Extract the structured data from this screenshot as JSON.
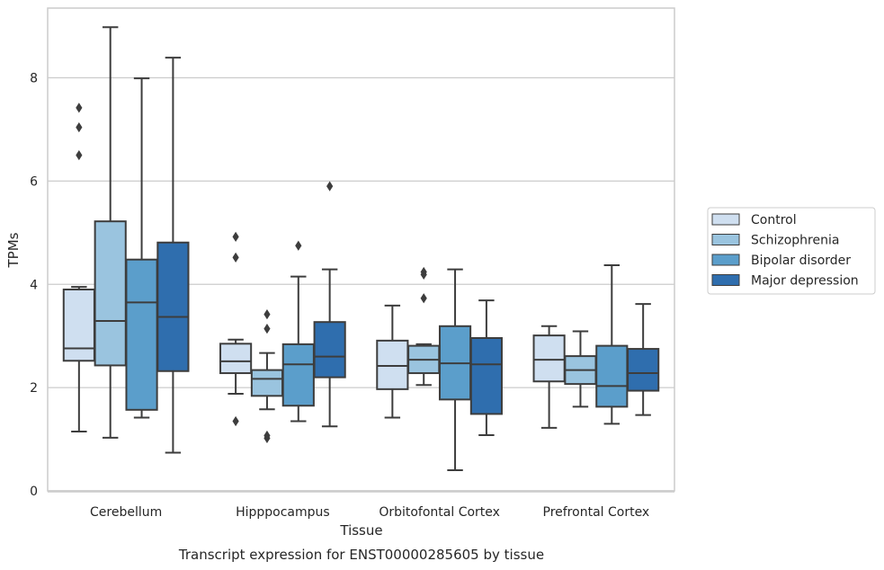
{
  "chart_data": {
    "type": "boxplot",
    "caption": "Transcript expression for ENST00000285605 by tissue",
    "xlabel": "Tissue",
    "ylabel": "TPMs",
    "ylim": [
      0,
      9.35
    ],
    "yticks": [
      0,
      2,
      4,
      6,
      8
    ],
    "grid": "horizontal",
    "legend_position": "right",
    "categories": [
      "Cerebellum",
      "Hipppocampus",
      "Orbitofontal Cortex",
      "Prefrontal Cortex"
    ],
    "series": [
      {
        "name": "Control",
        "color": "#cfdff0",
        "boxes": [
          {
            "whisker_low": 1.15,
            "q1": 2.52,
            "median": 2.76,
            "q3": 3.9,
            "whisker_high": 3.95,
            "outliers": [
              6.5,
              7.04,
              7.42
            ]
          },
          {
            "whisker_low": 1.88,
            "q1": 2.28,
            "median": 2.51,
            "q3": 2.85,
            "whisker_high": 2.93,
            "outliers": [
              1.35,
              4.52,
              4.92
            ]
          },
          {
            "whisker_low": 1.42,
            "q1": 1.97,
            "median": 2.42,
            "q3": 2.91,
            "whisker_high": 3.59,
            "outliers": []
          },
          {
            "whisker_low": 1.22,
            "q1": 2.12,
            "median": 2.54,
            "q3": 3.01,
            "whisker_high": 3.19,
            "outliers": []
          }
        ]
      },
      {
        "name": "Schizophrenia",
        "color": "#9ac4df",
        "boxes": [
          {
            "whisker_low": 1.03,
            "q1": 2.43,
            "median": 3.29,
            "q3": 5.22,
            "whisker_high": 8.98,
            "outliers": []
          },
          {
            "whisker_low": 1.58,
            "q1": 1.84,
            "median": 2.17,
            "q3": 2.34,
            "whisker_high": 2.67,
            "outliers": [
              1.02,
              1.07,
              3.14,
              3.42
            ]
          },
          {
            "whisker_low": 2.05,
            "q1": 2.28,
            "median": 2.54,
            "q3": 2.81,
            "whisker_high": 2.84,
            "outliers": [
              3.73,
              4.19,
              4.24
            ]
          },
          {
            "whisker_low": 1.63,
            "q1": 2.07,
            "median": 2.34,
            "q3": 2.61,
            "whisker_high": 3.09,
            "outliers": []
          }
        ]
      },
      {
        "name": "Bipolar disorder",
        "color": "#5b9ecb",
        "boxes": [
          {
            "whisker_low": 1.42,
            "q1": 1.57,
            "median": 3.65,
            "q3": 4.48,
            "whisker_high": 7.99,
            "outliers": []
          },
          {
            "whisker_low": 1.35,
            "q1": 1.65,
            "median": 2.45,
            "q3": 2.84,
            "whisker_high": 4.15,
            "outliers": [
              4.75
            ]
          },
          {
            "whisker_low": 0.4,
            "q1": 1.77,
            "median": 2.47,
            "q3": 3.19,
            "whisker_high": 4.29,
            "outliers": []
          },
          {
            "whisker_low": 1.3,
            "q1": 1.63,
            "median": 2.03,
            "q3": 2.81,
            "whisker_high": 4.37,
            "outliers": []
          }
        ]
      },
      {
        "name": "Major depression",
        "color": "#2f6eae",
        "boxes": [
          {
            "whisker_low": 0.74,
            "q1": 2.32,
            "median": 3.37,
            "q3": 4.81,
            "whisker_high": 8.39,
            "outliers": []
          },
          {
            "whisker_low": 1.25,
            "q1": 2.2,
            "median": 2.6,
            "q3": 3.27,
            "whisker_high": 4.29,
            "outliers": [
              5.9
            ]
          },
          {
            "whisker_low": 1.08,
            "q1": 1.49,
            "median": 2.45,
            "q3": 2.96,
            "whisker_high": 3.69,
            "outliers": []
          },
          {
            "whisker_low": 1.47,
            "q1": 1.94,
            "median": 2.28,
            "q3": 2.75,
            "whisker_high": 3.62,
            "outliers": []
          }
        ]
      }
    ]
  },
  "colors": {
    "grid": "#cccccc",
    "frame": "#cccccc",
    "box_edge": "#3d3d3d",
    "text": "#262626"
  }
}
